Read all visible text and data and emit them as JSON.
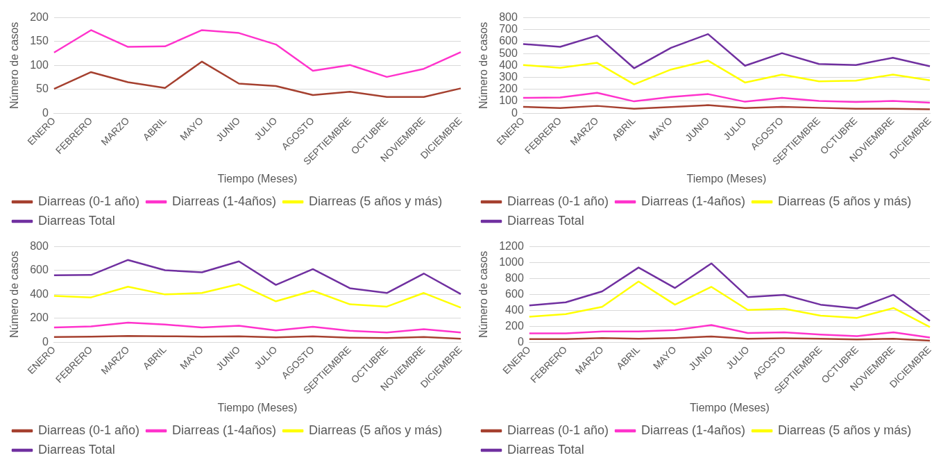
{
  "chart_data": [
    {
      "type": "line",
      "xlabel": "Tiempo (Meses)",
      "ylabel": "Número de casos",
      "categories": [
        "ENERO",
        "FEBRERO",
        "MARZO",
        "ABRIL",
        "MAYO",
        "JUNIO",
        "JULIO",
        "AGOSTO",
        "SEPTIEMBRE",
        "OCTUBRE",
        "NOVIEMBRE",
        "DICIEMBRE"
      ],
      "ylim": [
        0,
        200
      ],
      "yticks": [
        0,
        50,
        100,
        150,
        200
      ],
      "grid": "y",
      "legend": "bottom",
      "marker": "none",
      "series": [
        {
          "name": "Diarreas (0-1 año)",
          "color": "#a5402f",
          "values": [
            51,
            86,
            65,
            53,
            108,
            62,
            57,
            38,
            45,
            34,
            34,
            52
          ]
        },
        {
          "name": "Diarreas (1-4años)",
          "color": "#ff33cc",
          "values": [
            127,
            174,
            139,
            140,
            174,
            168,
            144,
            89,
            101,
            76,
            93,
            128
          ]
        },
        {
          "name": "Diarreas (5 años y más)",
          "color": "#ffff00",
          "values": [
            null,
            null,
            null,
            null,
            null,
            null,
            null,
            null,
            null,
            null,
            null,
            null
          ]
        },
        {
          "name": "Diarreas Total",
          "color": "#7030a0",
          "values": [
            null,
            null,
            null,
            null,
            null,
            null,
            null,
            null,
            null,
            null,
            null,
            null
          ]
        }
      ]
    },
    {
      "type": "line",
      "xlabel": "Tiempo (Meses)",
      "ylabel": "Número de casos",
      "categories": [
        "ENERO",
        "FEBRERO",
        "MARZO",
        "ABRIL",
        "MAYO",
        "JUNIO",
        "JULIO",
        "AGOSTO",
        "SEPTIEMBRE",
        "OCTUBRE",
        "NOVIEMBRE",
        "DICIEMBRE"
      ],
      "ylim": [
        0,
        800
      ],
      "yticks": [
        0,
        100,
        200,
        300,
        400,
        500,
        600,
        700,
        800
      ],
      "grid": "y",
      "legend": "bottom",
      "marker": "none",
      "series": [
        {
          "name": "Diarreas (0-1 año)",
          "color": "#a5402f",
          "values": [
            53,
            43,
            61,
            37,
            51,
            67,
            43,
            53,
            45,
            37,
            37,
            32
          ]
        },
        {
          "name": "Diarreas (1-4años)",
          "color": "#ff33cc",
          "values": [
            128,
            131,
            171,
            99,
            136,
            160,
            96,
            128,
            102,
            94,
            102,
            88
          ]
        },
        {
          "name": "Diarreas (5 años y más)",
          "color": "#ffff00",
          "values": [
            404,
            380,
            422,
            241,
            366,
            441,
            257,
            324,
            267,
            273,
            324,
            275
          ]
        },
        {
          "name": "Diarreas Total",
          "color": "#7030a0",
          "values": [
            580,
            556,
            650,
            377,
            548,
            663,
            398,
            503,
            412,
            404,
            465,
            393
          ]
        }
      ]
    },
    {
      "type": "line",
      "xlabel": "Tiempo (Meses)",
      "ylabel": "Número de casos",
      "categories": [
        "ENERO",
        "FEBRERO",
        "MARZO",
        "ABRIL",
        "MAYO",
        "JUNIO",
        "JULIO",
        "AGOSTO",
        "SEPTIEMBRE",
        "OCTUBRE",
        "NOVIEMBRE",
        "DICIEMBRE"
      ],
      "ylim": [
        0,
        800
      ],
      "yticks": [
        0,
        200,
        400,
        600,
        800
      ],
      "grid": "y",
      "legend": "bottom",
      "marker": "none",
      "series": [
        {
          "name": "Diarreas (0-1 año)",
          "color": "#a5402f",
          "values": [
            43,
            46,
            52,
            49,
            46,
            49,
            40,
            49,
            37,
            34,
            43,
            28
          ]
        },
        {
          "name": "Diarreas (1-4años)",
          "color": "#ff33cc",
          "values": [
            123,
            132,
            163,
            148,
            123,
            138,
            98,
            129,
            95,
            80,
            108,
            80
          ]
        },
        {
          "name": "Diarreas (5 años y más)",
          "color": "#ffff00",
          "values": [
            388,
            375,
            465,
            400,
            412,
            486,
            342,
            431,
            317,
            298,
            412,
            289
          ]
        },
        {
          "name": "Diarreas Total",
          "color": "#7030a0",
          "values": [
            560,
            563,
            689,
            603,
            585,
            677,
            480,
            612,
            452,
            412,
            575,
            403
          ]
        }
      ]
    },
    {
      "type": "line",
      "xlabel": "Tiempo (Meses)",
      "ylabel": "Número de casos",
      "categories": [
        "ENERO",
        "FEBRERO",
        "MARZO",
        "ABRIL",
        "MAYO",
        "JUNIO",
        "JULIO",
        "AGOSTO",
        "SEPTIEMBRE",
        "OCTUBRE",
        "NOVIEMBRE",
        "DICIEMBRE"
      ],
      "ylim": [
        0,
        1200
      ],
      "yticks": [
        0,
        200,
        400,
        600,
        800,
        1000,
        1200
      ],
      "grid": "y",
      "legend": "bottom",
      "marker": "none",
      "series": [
        {
          "name": "Diarreas (0-1 año)",
          "color": "#a5402f",
          "values": [
            38,
            38,
            52,
            43,
            52,
            71,
            43,
            48,
            43,
            33,
            43,
            19
          ]
        },
        {
          "name": "Diarreas (1-4años)",
          "color": "#ff33cc",
          "values": [
            110,
            110,
            133,
            133,
            152,
            214,
            114,
            124,
            95,
            76,
            124,
            57
          ]
        },
        {
          "name": "Diarreas (5 años y más)",
          "color": "#ffff00",
          "values": [
            319,
            352,
            443,
            762,
            471,
            695,
            405,
            419,
            333,
            305,
            429,
            190
          ]
        },
        {
          "name": "Diarreas Total",
          "color": "#7030a0",
          "values": [
            462,
            500,
            638,
            938,
            681,
            990,
            567,
            595,
            471,
            424,
            595,
            267
          ]
        }
      ]
    }
  ]
}
